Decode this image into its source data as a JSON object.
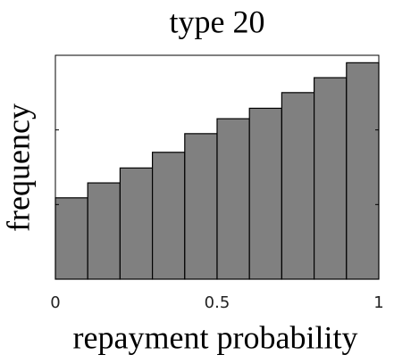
{
  "chart_data": {
    "type": "histogram",
    "title": "type 20",
    "x_label": "repayment probability",
    "y_label": "frequency",
    "bins": [
      0,
      0.1,
      0.2,
      0.3,
      0.4,
      0.5,
      0.6,
      0.7,
      0.8,
      0.9,
      1
    ],
    "values": [
      1.09,
      1.29,
      1.49,
      1.7,
      1.95,
      2.15,
      2.29,
      2.5,
      2.7,
      2.9
    ],
    "color": "#808080",
    "xlim": [
      0,
      1
    ],
    "xticks": [
      0,
      0.5,
      1
    ],
    "ylim": [
      0,
      3
    ],
    "yticks": [
      1,
      2
    ],
    "grid": false
  }
}
